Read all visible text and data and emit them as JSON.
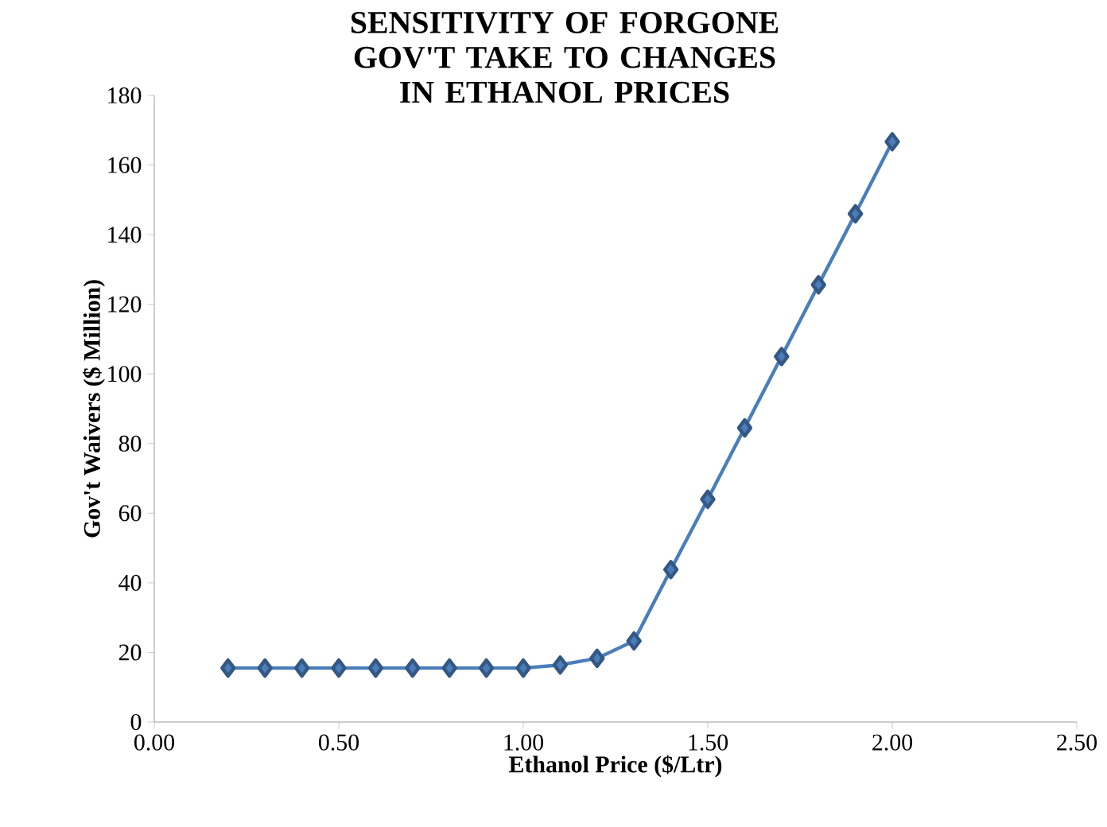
{
  "chart_data": {
    "type": "line",
    "title": "SENSITIVITY OF FORGONE GOV'T TAKE TO CHANGES IN ETHANOL PRICES",
    "xlabel": "Ethanol Price ($/Ltr)",
    "ylabel": "Gov't Waivers ($ Million)",
    "x": [
      0.2,
      0.3,
      0.4,
      0.5,
      0.6,
      0.7,
      0.8,
      0.9,
      1.0,
      1.1,
      1.2,
      1.3,
      1.4,
      1.5,
      1.6,
      1.7,
      1.8,
      1.9,
      2.0
    ],
    "series": [
      {
        "color": "#4a7ebb",
        "values": [
          15.5,
          15.5,
          15.5,
          15.5,
          15.5,
          15.5,
          15.5,
          15.5,
          15.5,
          16.4,
          18.3,
          23.3,
          43.8,
          64,
          84.5,
          105,
          125.6,
          146,
          166.7
        ]
      }
    ],
    "xlim": [
      0,
      2.5
    ],
    "xticks": [
      {
        "value": 0,
        "label": "0.00"
      },
      {
        "value": 0.5,
        "label": "0.50"
      },
      {
        "value": 1,
        "label": "1.00"
      },
      {
        "value": 1.5,
        "label": "1.50"
      },
      {
        "value": 2,
        "label": "2.00"
      },
      {
        "value": 2.5,
        "label": "2.50"
      }
    ],
    "ylim": [
      0,
      180
    ],
    "yticks": [
      0,
      20,
      40,
      60,
      80,
      100,
      120,
      140,
      160,
      180
    ],
    "grid": false,
    "marker": "diamond",
    "line_style": "solid"
  }
}
